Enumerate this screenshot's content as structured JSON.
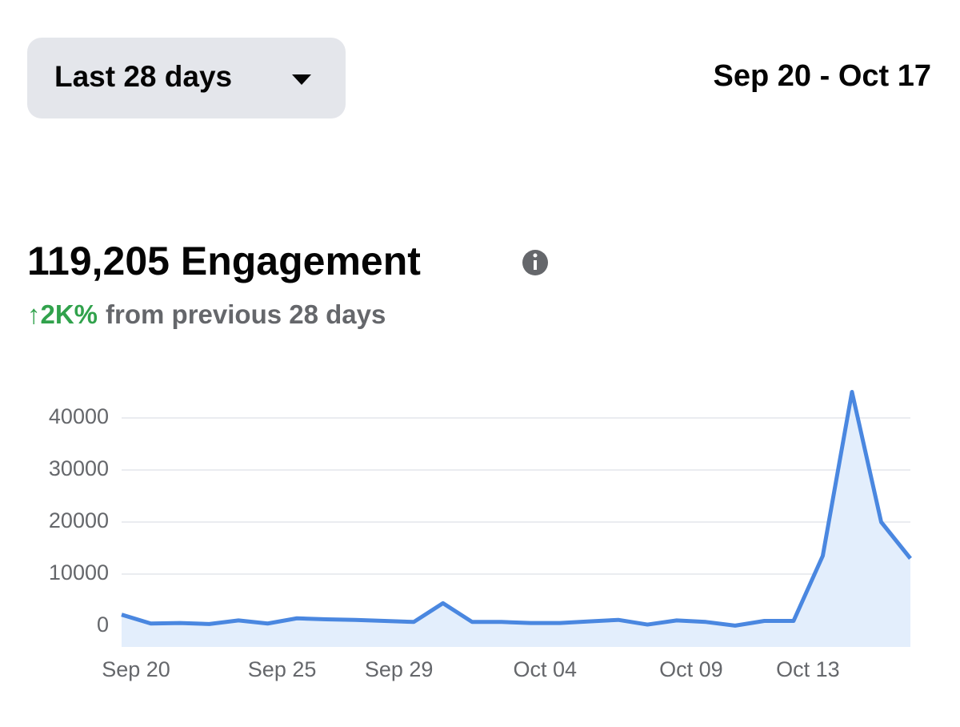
{
  "header": {
    "range_selector": "Last 28 days",
    "date_range": "Sep 20 - Oct 17"
  },
  "metric": {
    "title": "119,205 Engagement",
    "change": "↑2K%",
    "comparison": "from previous 28 days"
  },
  "chart_data": {
    "type": "line",
    "categories": [
      "Sep 20",
      null,
      null,
      null,
      null,
      "Sep 25",
      null,
      null,
      null,
      "Sep 29",
      null,
      null,
      null,
      null,
      "Oct 04",
      null,
      null,
      null,
      null,
      "Oct 09",
      null,
      null,
      null,
      "Oct 13",
      null,
      null,
      null,
      null
    ],
    "values": [
      2200,
      500,
      600,
      400,
      1100,
      500,
      1500,
      1300,
      1200,
      1000,
      800,
      4400,
      800,
      800,
      600,
      600,
      900,
      1200,
      300,
      1100,
      800,
      100,
      1000,
      1000,
      13500,
      45000,
      20000,
      13000
    ],
    "color": "#4a87e0",
    "area_color": "#e3eefc",
    "ylim": [
      -4000,
      46000
    ],
    "yticks": [
      0,
      10000,
      20000,
      30000,
      40000
    ],
    "grid": true
  }
}
